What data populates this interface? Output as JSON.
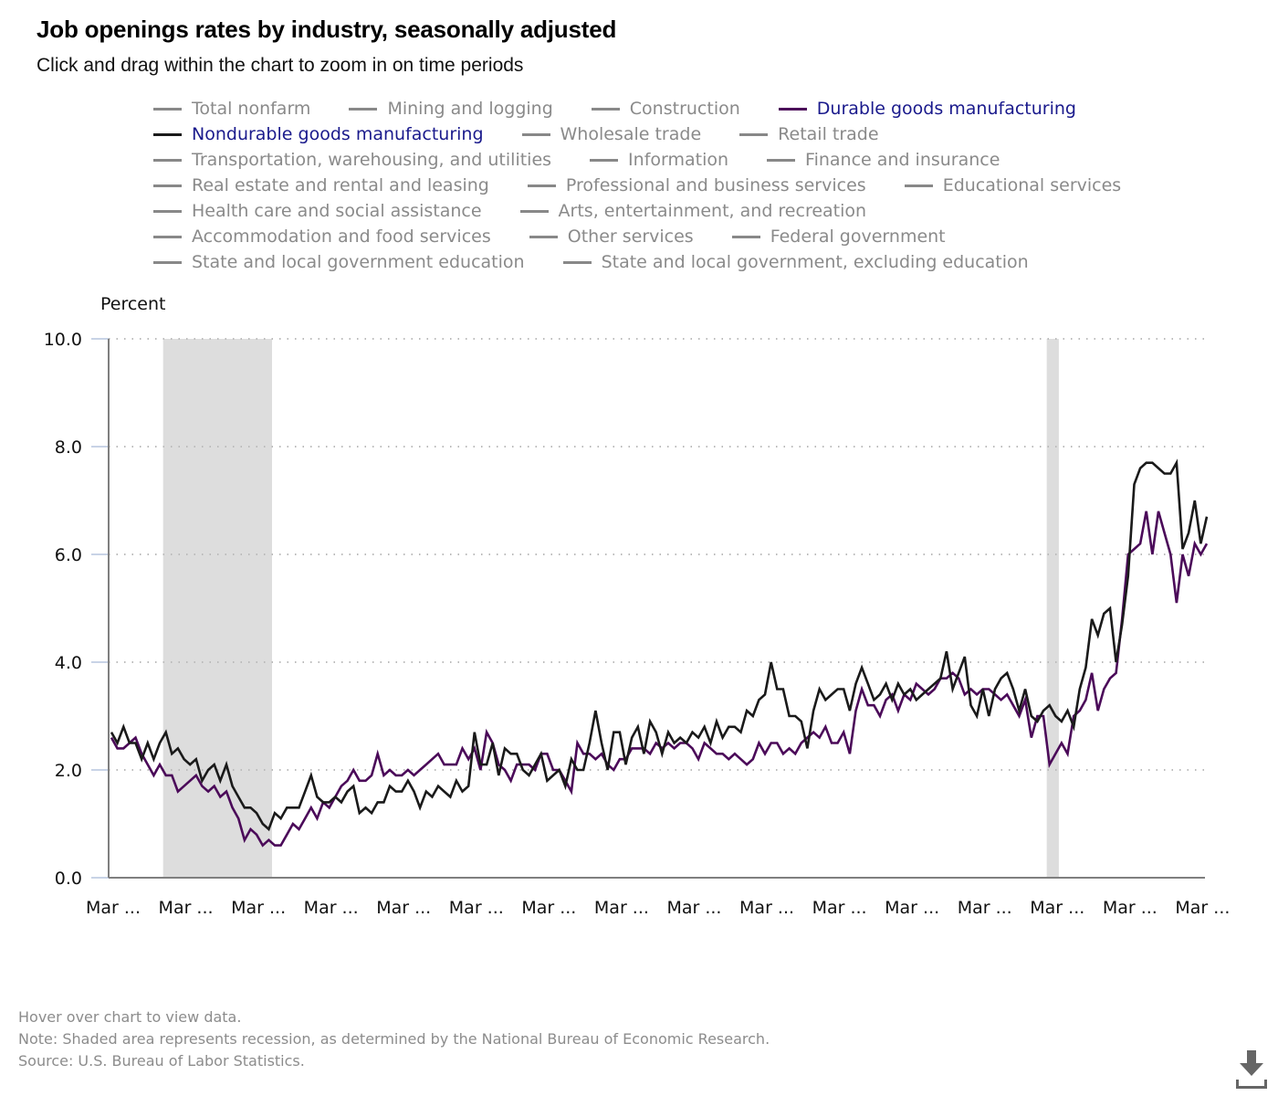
{
  "header": {
    "title": "Job openings rates by industry, seasonally adjusted",
    "subtitle": "Click and drag within the chart to zoom in on time periods"
  },
  "legend": {
    "rows": [
      [
        {
          "label": "Total nonfarm",
          "active": false,
          "color": "#888888"
        },
        {
          "label": "Mining and logging",
          "active": false,
          "color": "#888888"
        },
        {
          "label": "Construction",
          "active": false,
          "color": "#888888"
        },
        {
          "label": "Durable goods manufacturing",
          "active": true,
          "color": "#4b0a59"
        }
      ],
      [
        {
          "label": "Nondurable goods manufacturing",
          "active": true,
          "color": "#1a1a1a"
        },
        {
          "label": "Wholesale trade",
          "active": false,
          "color": "#888888"
        },
        {
          "label": "Retail trade",
          "active": false,
          "color": "#888888"
        }
      ],
      [
        {
          "label": "Transportation, warehousing, and utilities",
          "active": false,
          "color": "#888888"
        },
        {
          "label": "Information",
          "active": false,
          "color": "#888888"
        },
        {
          "label": "Finance and insurance",
          "active": false,
          "color": "#888888"
        }
      ],
      [
        {
          "label": "Real estate and rental and leasing",
          "active": false,
          "color": "#888888"
        },
        {
          "label": "Professional and business services",
          "active": false,
          "color": "#888888"
        },
        {
          "label": "Educational services",
          "active": false,
          "color": "#888888"
        }
      ],
      [
        {
          "label": "Health care and social assistance",
          "active": false,
          "color": "#888888"
        },
        {
          "label": "Arts, entertainment, and recreation",
          "active": false,
          "color": "#888888"
        }
      ],
      [
        {
          "label": "Accommodation and food services",
          "active": false,
          "color": "#888888"
        },
        {
          "label": "Other services",
          "active": false,
          "color": "#888888"
        },
        {
          "label": "Federal government",
          "active": false,
          "color": "#888888"
        }
      ],
      [
        {
          "label": "State and local government education",
          "active": false,
          "color": "#888888"
        },
        {
          "label": "State and local government, excluding education",
          "active": false,
          "color": "#888888"
        }
      ]
    ]
  },
  "footer": {
    "hover_note": "Hover over chart to view data.",
    "recession_note": "Note: Shaded area represents recession, as determined by the National Bureau of Economic Research.",
    "source": "Source: U.S. Bureau of Labor Statistics."
  },
  "download_icon": "download-icon",
  "chart_data": {
    "type": "line",
    "title": "Job openings rates by industry, seasonally adjusted",
    "ylabel": "Percent",
    "xlabel": "",
    "ylim": [
      0,
      10
    ],
    "yticks": [
      "0.0",
      "2.0",
      "4.0",
      "6.0",
      "8.0",
      "10.0"
    ],
    "ytick_values": [
      0,
      2,
      4,
      6,
      8,
      10
    ],
    "grid": "horizontal dotted",
    "x_start": "2007-03",
    "x_end": "2022-03",
    "x_frequency": "monthly",
    "xtick_labels": [
      "Mar ...",
      "Mar ...",
      "Mar ...",
      "Mar ...",
      "Mar ...",
      "Mar ...",
      "Mar ...",
      "Mar ...",
      "Mar ...",
      "Mar ...",
      "Mar ...",
      "Mar ...",
      "Mar ...",
      "Mar ...",
      "Mar ...",
      "Mar ..."
    ],
    "xtick_month_index": [
      0,
      12,
      24,
      36,
      48,
      60,
      72,
      84,
      96,
      108,
      120,
      132,
      144,
      156,
      168,
      180
    ],
    "recessions": [
      {
        "start_index": 9,
        "end_index": 27
      },
      {
        "start_index": 155,
        "end_index": 157
      }
    ],
    "recession_color": "#dddddd",
    "series": [
      {
        "name": "Nondurable goods manufacturing",
        "color": "#1a1a1a",
        "values": [
          2.7,
          2.5,
          2.8,
          2.5,
          2.5,
          2.2,
          2.5,
          2.2,
          2.5,
          2.7,
          2.3,
          2.4,
          2.2,
          2.1,
          2.2,
          1.8,
          2.0,
          2.1,
          1.8,
          2.1,
          1.7,
          1.5,
          1.3,
          1.3,
          1.2,
          1.0,
          0.9,
          1.2,
          1.1,
          1.3,
          1.3,
          1.3,
          1.6,
          1.9,
          1.5,
          1.4,
          1.4,
          1.5,
          1.4,
          1.6,
          1.7,
          1.2,
          1.3,
          1.2,
          1.4,
          1.4,
          1.7,
          1.6,
          1.6,
          1.8,
          1.6,
          1.3,
          1.6,
          1.5,
          1.7,
          1.6,
          1.5,
          1.8,
          1.6,
          1.7,
          2.7,
          2.1,
          2.1,
          2.5,
          1.9,
          2.4,
          2.3,
          2.3,
          2.0,
          1.9,
          2.1,
          2.3,
          1.8,
          1.9,
          2.0,
          1.7,
          2.2,
          2.0,
          2.0,
          2.5,
          3.1,
          2.5,
          2.0,
          2.7,
          2.7,
          2.1,
          2.6,
          2.8,
          2.3,
          2.9,
          2.7,
          2.3,
          2.7,
          2.5,
          2.6,
          2.5,
          2.7,
          2.6,
          2.8,
          2.5,
          2.9,
          2.6,
          2.8,
          2.8,
          2.7,
          3.1,
          3.0,
          3.3,
          3.4,
          4.0,
          3.5,
          3.5,
          3.0,
          3.0,
          2.9,
          2.4,
          3.1,
          3.5,
          3.3,
          3.4,
          3.5,
          3.5,
          3.1,
          3.6,
          3.9,
          3.6,
          3.3,
          3.4,
          3.6,
          3.3,
          3.6,
          3.4,
          3.5,
          3.3,
          3.4,
          3.5,
          3.6,
          3.7,
          4.2,
          3.5,
          3.8,
          4.1,
          3.2,
          3.0,
          3.5,
          3.0,
          3.5,
          3.7,
          3.8,
          3.5,
          3.1,
          3.5,
          3.0,
          2.9,
          3.1,
          3.2,
          3.0,
          2.9,
          3.1,
          2.8,
          3.5,
          3.9,
          4.8,
          4.5,
          4.9,
          5.0,
          4.0,
          4.7,
          5.6,
          7.3,
          7.6,
          7.7,
          7.7,
          7.6,
          7.5,
          7.5,
          7.7,
          6.1,
          6.4,
          7.0,
          6.2,
          6.7
        ]
      },
      {
        "name": "Durable goods manufacturing",
        "color": "#4b0a59",
        "values": [
          2.6,
          2.4,
          2.4,
          2.5,
          2.6,
          2.3,
          2.1,
          1.9,
          2.1,
          1.9,
          1.9,
          1.6,
          1.7,
          1.8,
          1.9,
          1.7,
          1.6,
          1.7,
          1.5,
          1.6,
          1.3,
          1.1,
          0.7,
          0.9,
          0.8,
          0.6,
          0.7,
          0.6,
          0.6,
          0.8,
          1.0,
          0.9,
          1.1,
          1.3,
          1.1,
          1.4,
          1.3,
          1.5,
          1.7,
          1.8,
          2.0,
          1.8,
          1.8,
          1.9,
          2.3,
          1.9,
          2.0,
          1.9,
          1.9,
          2.0,
          1.9,
          2.0,
          2.1,
          2.2,
          2.3,
          2.1,
          2.1,
          2.1,
          2.4,
          2.2,
          2.4,
          2.0,
          2.7,
          2.5,
          2.1,
          2.0,
          1.8,
          2.1,
          2.1,
          2.1,
          2.0,
          2.3,
          2.3,
          2.0,
          2.0,
          1.8,
          1.6,
          2.5,
          2.3,
          2.3,
          2.2,
          2.3,
          2.1,
          2.0,
          2.2,
          2.2,
          2.4,
          2.4,
          2.4,
          2.3,
          2.5,
          2.4,
          2.5,
          2.4,
          2.5,
          2.5,
          2.4,
          2.2,
          2.5,
          2.4,
          2.3,
          2.3,
          2.2,
          2.3,
          2.2,
          2.1,
          2.2,
          2.5,
          2.3,
          2.5,
          2.5,
          2.3,
          2.4,
          2.3,
          2.5,
          2.6,
          2.7,
          2.6,
          2.8,
          2.5,
          2.5,
          2.7,
          2.3,
          3.1,
          3.5,
          3.2,
          3.2,
          3.0,
          3.3,
          3.4,
          3.1,
          3.4,
          3.3,
          3.6,
          3.5,
          3.4,
          3.5,
          3.7,
          3.7,
          3.8,
          3.7,
          3.4,
          3.5,
          3.4,
          3.5,
          3.5,
          3.4,
          3.3,
          3.4,
          3.2,
          3.0,
          3.3,
          2.6,
          3.0,
          3.0,
          2.1,
          2.3,
          2.5,
          2.3,
          3.0,
          3.1,
          3.3,
          3.8,
          3.1,
          3.5,
          3.7,
          3.8,
          4.8,
          6.0,
          6.1,
          6.2,
          6.8,
          6.0,
          6.8,
          6.4,
          6.0,
          5.1,
          6.0,
          5.6,
          6.2,
          6.0,
          6.2
        ]
      }
    ]
  }
}
